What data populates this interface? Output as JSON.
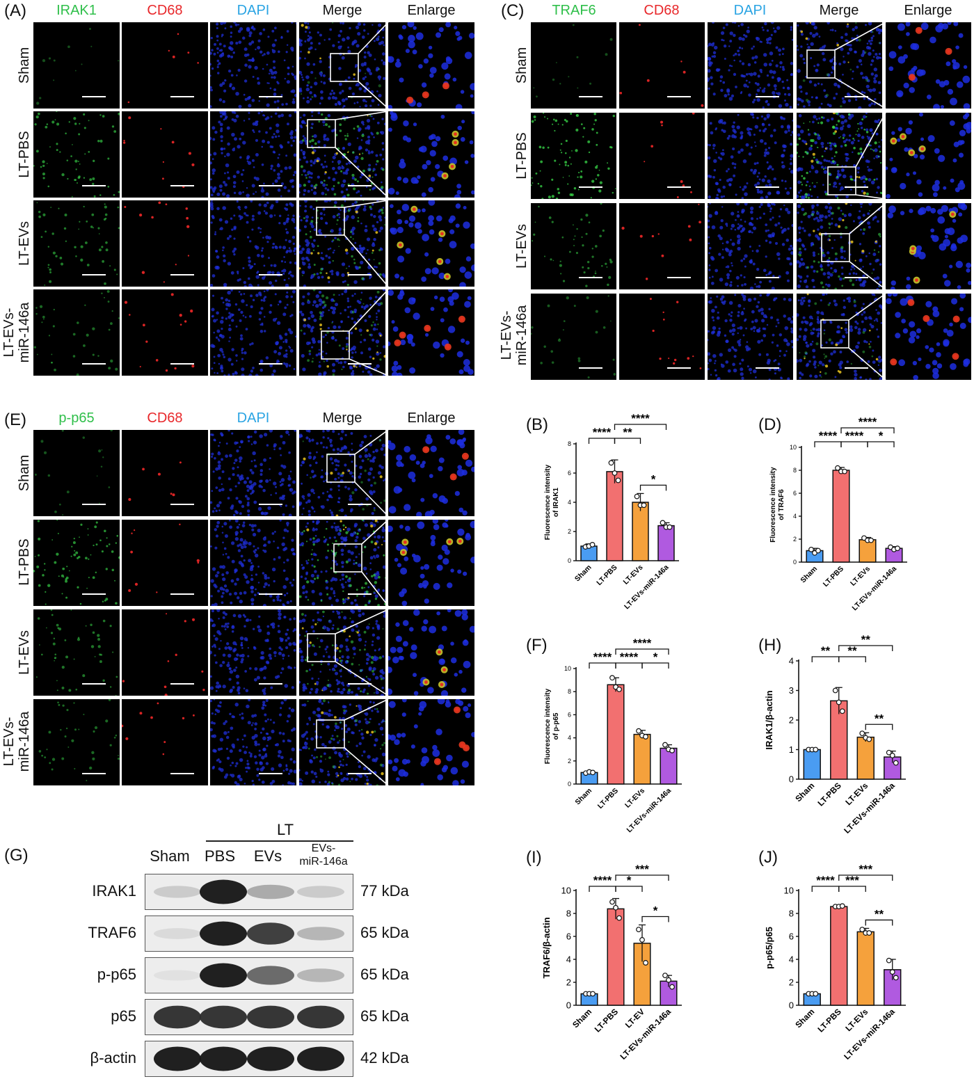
{
  "colors": {
    "green": "#2fbf4a",
    "red": "#e8282b",
    "blue": "#2aa4e3",
    "bar_sham": "#4a9cf2",
    "bar_pbs": "#f27070",
    "bar_evs": "#f5a13c",
    "bar_mir": "#b05ae0"
  },
  "if_panels": [
    {
      "id": "A",
      "label": "(A)",
      "columns": [
        "IRAK1",
        "CD68",
        "DAPI",
        "Merge",
        "Enlarge"
      ],
      "rows": [
        [
          "Sham"
        ],
        [
          "LT-PBS"
        ],
        [
          "LT-EVs"
        ],
        [
          "LT-EVs-",
          "miR-146a"
        ]
      ],
      "green_level": [
        0.1,
        0.55,
        0.45,
        0.3
      ],
      "red_level": [
        0.15,
        0.35,
        0.45,
        0.55
      ]
    },
    {
      "id": "C",
      "label": "(C)",
      "columns": [
        "TRAF6",
        "CD68",
        "DAPI",
        "Merge",
        "Enlarge"
      ],
      "rows": [
        [
          "Sham"
        ],
        [
          "LT-PBS"
        ],
        [
          "LT-EVs"
        ],
        [
          "LT-EVs-",
          "miR-146a"
        ]
      ],
      "green_level": [
        0.1,
        0.75,
        0.4,
        0.2
      ],
      "red_level": [
        0.15,
        0.3,
        0.35,
        0.45
      ]
    },
    {
      "id": "E",
      "label": "(E)",
      "columns": [
        "p-p65",
        "CD68",
        "DAPI",
        "Merge",
        "Enlarge"
      ],
      "rows": [
        [
          "Sham"
        ],
        [
          "LT-PBS"
        ],
        [
          "LT-EVs"
        ],
        [
          "LT-EVs-",
          "miR-146a"
        ]
      ],
      "green_level": [
        0.15,
        0.6,
        0.4,
        0.3
      ],
      "red_level": [
        0.15,
        0.3,
        0.35,
        0.3
      ]
    }
  ],
  "chart_data": [
    {
      "id": "B",
      "label": "(B)",
      "type": "bar",
      "categories": [
        "Sham",
        "LT-PBS",
        "LT-EVs",
        "LT-EVs-miR-146a"
      ],
      "values": [
        1.0,
        6.1,
        4.0,
        2.4
      ],
      "errors": [
        0.15,
        0.8,
        0.6,
        0.2
      ],
      "points": [
        [
          0.95,
          1.0,
          1.1
        ],
        [
          6.7,
          6.0,
          5.5
        ],
        [
          4.4,
          3.8,
          3.8
        ],
        [
          2.6,
          2.3,
          2.3
        ]
      ],
      "ylabel": "Fluorescence intensity of IRAK1",
      "ylim": [
        0,
        8
      ],
      "yticks": [
        0,
        2,
        4,
        6,
        8
      ],
      "sig": [
        {
          "from": 0,
          "to": 1,
          "text": "****",
          "level": 2
        },
        {
          "from": 1,
          "to": 2,
          "text": "**",
          "level": 2
        },
        {
          "from": 1,
          "to": 3,
          "text": "****",
          "level": 3
        },
        {
          "from": 2,
          "to": 3,
          "text": "*",
          "level": 1
        }
      ]
    },
    {
      "id": "D",
      "label": "(D)",
      "type": "bar",
      "categories": [
        "Sham",
        "LT-PBS",
        "LT-EVs",
        "LT-EVs-miR-146a"
      ],
      "values": [
        1.0,
        8.0,
        1.95,
        1.2
      ],
      "errors": [
        0.2,
        0.25,
        0.2,
        0.15
      ],
      "points": [
        [
          1.1,
          0.8,
          1.0
        ],
        [
          8.2,
          7.9,
          7.9
        ],
        [
          2.1,
          1.9,
          1.9
        ],
        [
          1.3,
          1.1,
          1.2
        ]
      ],
      "ylabel": "Fluorescence intensity of TRAF6",
      "ylim": [
        0,
        10
      ],
      "yticks": [
        0,
        2,
        4,
        6,
        8,
        10
      ],
      "sig": [
        {
          "from": 0,
          "to": 1,
          "text": "****",
          "level": 2
        },
        {
          "from": 1,
          "to": 2,
          "text": "****",
          "level": 2
        },
        {
          "from": 1,
          "to": 3,
          "text": "****",
          "level": 3
        },
        {
          "from": 2,
          "to": 3,
          "text": "*",
          "level": 2
        }
      ]
    },
    {
      "id": "F",
      "label": "(F)",
      "type": "bar",
      "categories": [
        "Sham",
        "LT-PBS",
        "LT-EVs",
        "LT-EVs-miR-146a"
      ],
      "values": [
        1.0,
        8.6,
        4.3,
        3.1
      ],
      "errors": [
        0.1,
        0.6,
        0.35,
        0.3
      ],
      "points": [
        [
          0.95,
          1.05,
          1.0
        ],
        [
          9.2,
          8.4,
          8.2
        ],
        [
          4.6,
          4.2,
          4.1
        ],
        [
          3.4,
          3.0,
          2.9
        ]
      ],
      "ylabel": "Fluorescence intensity of p-p65",
      "ylim": [
        0,
        10
      ],
      "yticks": [
        0,
        2,
        4,
        6,
        8,
        10
      ],
      "sig": [
        {
          "from": 0,
          "to": 1,
          "text": "****",
          "level": 2
        },
        {
          "from": 1,
          "to": 2,
          "text": "****",
          "level": 2
        },
        {
          "from": 1,
          "to": 3,
          "text": "****",
          "level": 3
        },
        {
          "from": 2,
          "to": 3,
          "text": "*",
          "level": 2
        }
      ]
    },
    {
      "id": "H",
      "label": "(H)",
      "type": "bar",
      "categories": [
        "Sham",
        "LT-PBS",
        "LT-EVs",
        "LT-EVs-miR-146a"
      ],
      "values": [
        1.0,
        2.65,
        1.42,
        0.75
      ],
      "errors": [
        0.02,
        0.45,
        0.15,
        0.2
      ],
      "points": [
        [
          1.0,
          1.0,
          1.0
        ],
        [
          3.0,
          2.6,
          2.3
        ],
        [
          1.55,
          1.4,
          1.35
        ],
        [
          0.9,
          0.8,
          0.55
        ]
      ],
      "ylabel": "IRAK1/β-actin",
      "ylim": [
        0,
        4
      ],
      "yticks": [
        0,
        1,
        2,
        3,
        4
      ],
      "sig": [
        {
          "from": 0,
          "to": 1,
          "text": "**",
          "level": 2
        },
        {
          "from": 1,
          "to": 2,
          "text": "**",
          "level": 2
        },
        {
          "from": 1,
          "to": 3,
          "text": "**",
          "level": 3
        },
        {
          "from": 2,
          "to": 3,
          "text": "**",
          "level": 1
        }
      ]
    },
    {
      "id": "I",
      "label": "(I)",
      "type": "bar",
      "categories": [
        "Sham",
        "LT-PBS",
        "LT-EV",
        "LT-EVs-miR-146a"
      ],
      "values": [
        1.0,
        8.4,
        5.4,
        2.1
      ],
      "errors": [
        0.02,
        0.9,
        1.6,
        0.5
      ],
      "points": [
        [
          1.0,
          1.0,
          1.0
        ],
        [
          9.0,
          8.5,
          7.6
        ],
        [
          6.6,
          5.7,
          3.7
        ],
        [
          2.6,
          2.2,
          1.6
        ]
      ],
      "ylabel": "TRAF6/β-actin",
      "ylim": [
        0,
        10
      ],
      "yticks": [
        0,
        2,
        4,
        6,
        8,
        10
      ],
      "sig": [
        {
          "from": 0,
          "to": 1,
          "text": "****",
          "level": 2
        },
        {
          "from": 1,
          "to": 2,
          "text": "*",
          "level": 2
        },
        {
          "from": 1,
          "to": 3,
          "text": "***",
          "level": 3
        },
        {
          "from": 2,
          "to": 3,
          "text": "*",
          "level": 1
        }
      ]
    },
    {
      "id": "J",
      "label": "(J)",
      "type": "bar",
      "categories": [
        "Sham",
        "LT-PBS",
        "LT-EVs",
        "LT-EVs-miR-146a"
      ],
      "values": [
        1.0,
        8.6,
        6.4,
        3.1
      ],
      "errors": [
        0.02,
        0.05,
        0.3,
        0.9
      ],
      "points": [
        [
          1.0,
          1.0,
          1.0
        ],
        [
          8.6,
          8.6,
          8.65
        ],
        [
          6.6,
          6.3,
          6.3
        ],
        [
          3.9,
          2.9,
          2.4
        ]
      ],
      "ylabel": "p-p65/p65",
      "ylim": [
        0,
        10
      ],
      "yticks": [
        0,
        2,
        4,
        6,
        8,
        10
      ],
      "sig": [
        {
          "from": 0,
          "to": 1,
          "text": "****",
          "level": 2
        },
        {
          "from": 1,
          "to": 2,
          "text": "***",
          "level": 2
        },
        {
          "from": 1,
          "to": 3,
          "text": "***",
          "level": 3
        },
        {
          "from": 2,
          "to": 3,
          "text": "**",
          "level": 1
        }
      ]
    }
  ],
  "western_blot": {
    "label": "(G)",
    "group_label": "LT",
    "lanes": [
      "Sham",
      "PBS",
      "EVs",
      "EVs-",
      "miR-146a"
    ],
    "rows": [
      {
        "protein": "IRAK1",
        "kda": "77 kDa",
        "intensity": [
          0.15,
          0.95,
          0.3,
          0.15
        ]
      },
      {
        "protein": "TRAF6",
        "kda": "65 kDa",
        "intensity": [
          0.08,
          0.95,
          0.8,
          0.25
        ]
      },
      {
        "protein": "p-p65",
        "kda": "65 kDa",
        "intensity": [
          0.05,
          0.95,
          0.6,
          0.25
        ]
      },
      {
        "protein": "p65",
        "kda": "65 kDa",
        "intensity": [
          0.85,
          0.85,
          0.85,
          0.85
        ]
      },
      {
        "protein": "β-actin",
        "kda": "42 kDa",
        "intensity": [
          0.95,
          0.95,
          0.95,
          0.95
        ]
      }
    ]
  }
}
